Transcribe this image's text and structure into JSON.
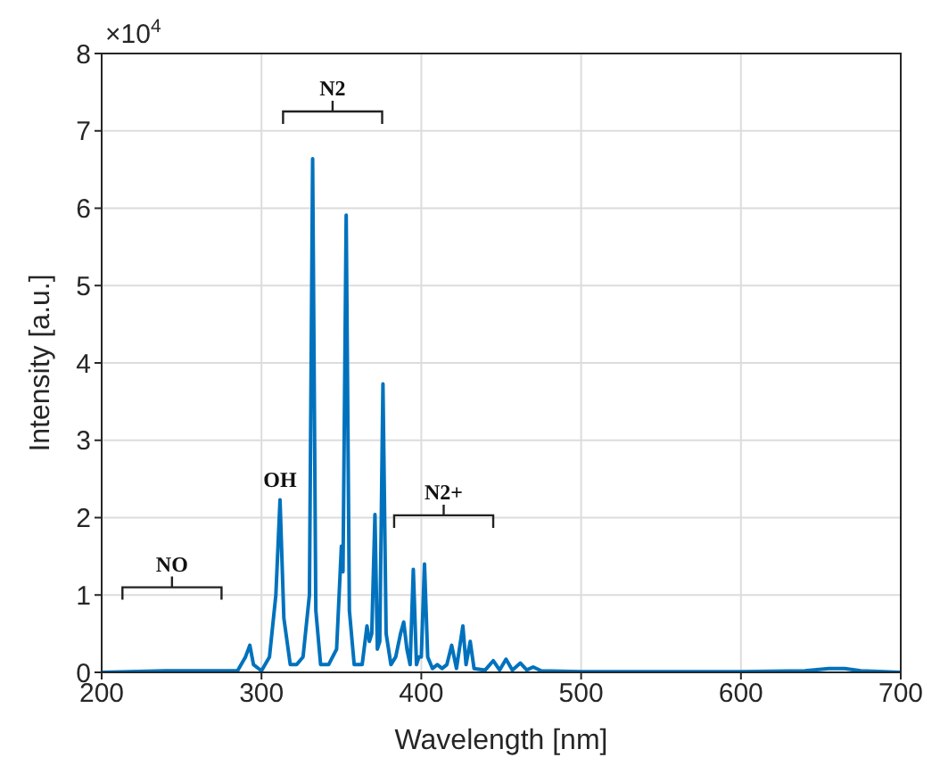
{
  "chart_data": {
    "type": "line",
    "xlabel": "Wavelength [nm]",
    "ylabel": "Intensity [a.u.]",
    "color": "#0072bd",
    "x": [
      200,
      240,
      270,
      285,
      290,
      292.7,
      295,
      300,
      305,
      309,
      311.6,
      314,
      318,
      322,
      326,
      330,
      332,
      334,
      337,
      342,
      347,
      350,
      351,
      353,
      355,
      358,
      363,
      366,
      367.5,
      369,
      371,
      372.5,
      374,
      376,
      378,
      381,
      384,
      387,
      389,
      391,
      393,
      395,
      397,
      398.5,
      400,
      402,
      404,
      407,
      410,
      413,
      416,
      419,
      422,
      426,
      428,
      430.6,
      433,
      440,
      445,
      449,
      453,
      457,
      462,
      466,
      470,
      475,
      500,
      600,
      640,
      655,
      665,
      675,
      700
    ],
    "values": [
      0,
      0.02,
      0.02,
      0.02,
      0.2,
      0.35,
      0.1,
      0.02,
      0.2,
      1.0,
      2.23,
      0.7,
      0.1,
      0.1,
      0.2,
      1.0,
      6.64,
      0.8,
      0.1,
      0.1,
      0.3,
      1.63,
      1.3,
      5.91,
      0.8,
      0.1,
      0.1,
      0.6,
      0.4,
      0.5,
      2.04,
      0.3,
      0.4,
      3.73,
      0.5,
      0.1,
      0.2,
      0.5,
      0.65,
      0.3,
      0.1,
      1.33,
      0.1,
      0.2,
      0.2,
      1.4,
      0.2,
      0.05,
      0.1,
      0.05,
      0.1,
      0.35,
      0.05,
      0.6,
      0.1,
      0.4,
      0.05,
      0.03,
      0.15,
      0.03,
      0.17,
      0.03,
      0.12,
      0.03,
      0.07,
      0.02,
      0.01,
      0.01,
      0.02,
      0.05,
      0.05,
      0.02,
      0
    ],
    "xlim": [
      200,
      700
    ],
    "xticks": [
      200,
      300,
      400,
      500,
      600,
      700
    ],
    "ylim": [
      0,
      8
    ],
    "yticks": [
      0,
      1,
      2,
      3,
      4,
      5,
      6,
      7,
      8
    ],
    "grid": true,
    "marker": "none",
    "line_style": "solid",
    "annotations": [
      "×10$^{4}$",
      "NO",
      "OH",
      "N2",
      "N2+"
    ]
  }
}
